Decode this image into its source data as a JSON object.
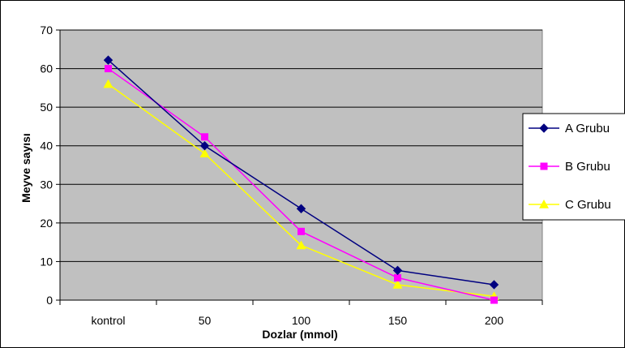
{
  "chart_data": {
    "type": "line",
    "categories": [
      "kontrol",
      "50",
      "100",
      "150",
      "200"
    ],
    "series": [
      {
        "name": "A Grubu",
        "values": [
          62.2,
          40,
          23.7,
          7.7,
          4
        ],
        "color": "#000080",
        "marker": "diamond"
      },
      {
        "name": "B Grubu",
        "values": [
          60,
          42.3,
          17.8,
          5.8,
          0
        ],
        "color": "#FF00FF",
        "marker": "square"
      },
      {
        "name": "C Grubu",
        "values": [
          56,
          38,
          14.2,
          4,
          1
        ],
        "color": "#FFFF00",
        "marker": "triangle"
      }
    ],
    "xlabel": "Dozlar (mmol)",
    "ylabel": "Meyve sayısı",
    "ylim": [
      0,
      70
    ],
    "yticks": [
      0,
      10,
      20,
      30,
      40,
      50,
      60,
      70
    ],
    "grid": true,
    "plot_background": "#C0C0C0",
    "legend_position": "right"
  }
}
